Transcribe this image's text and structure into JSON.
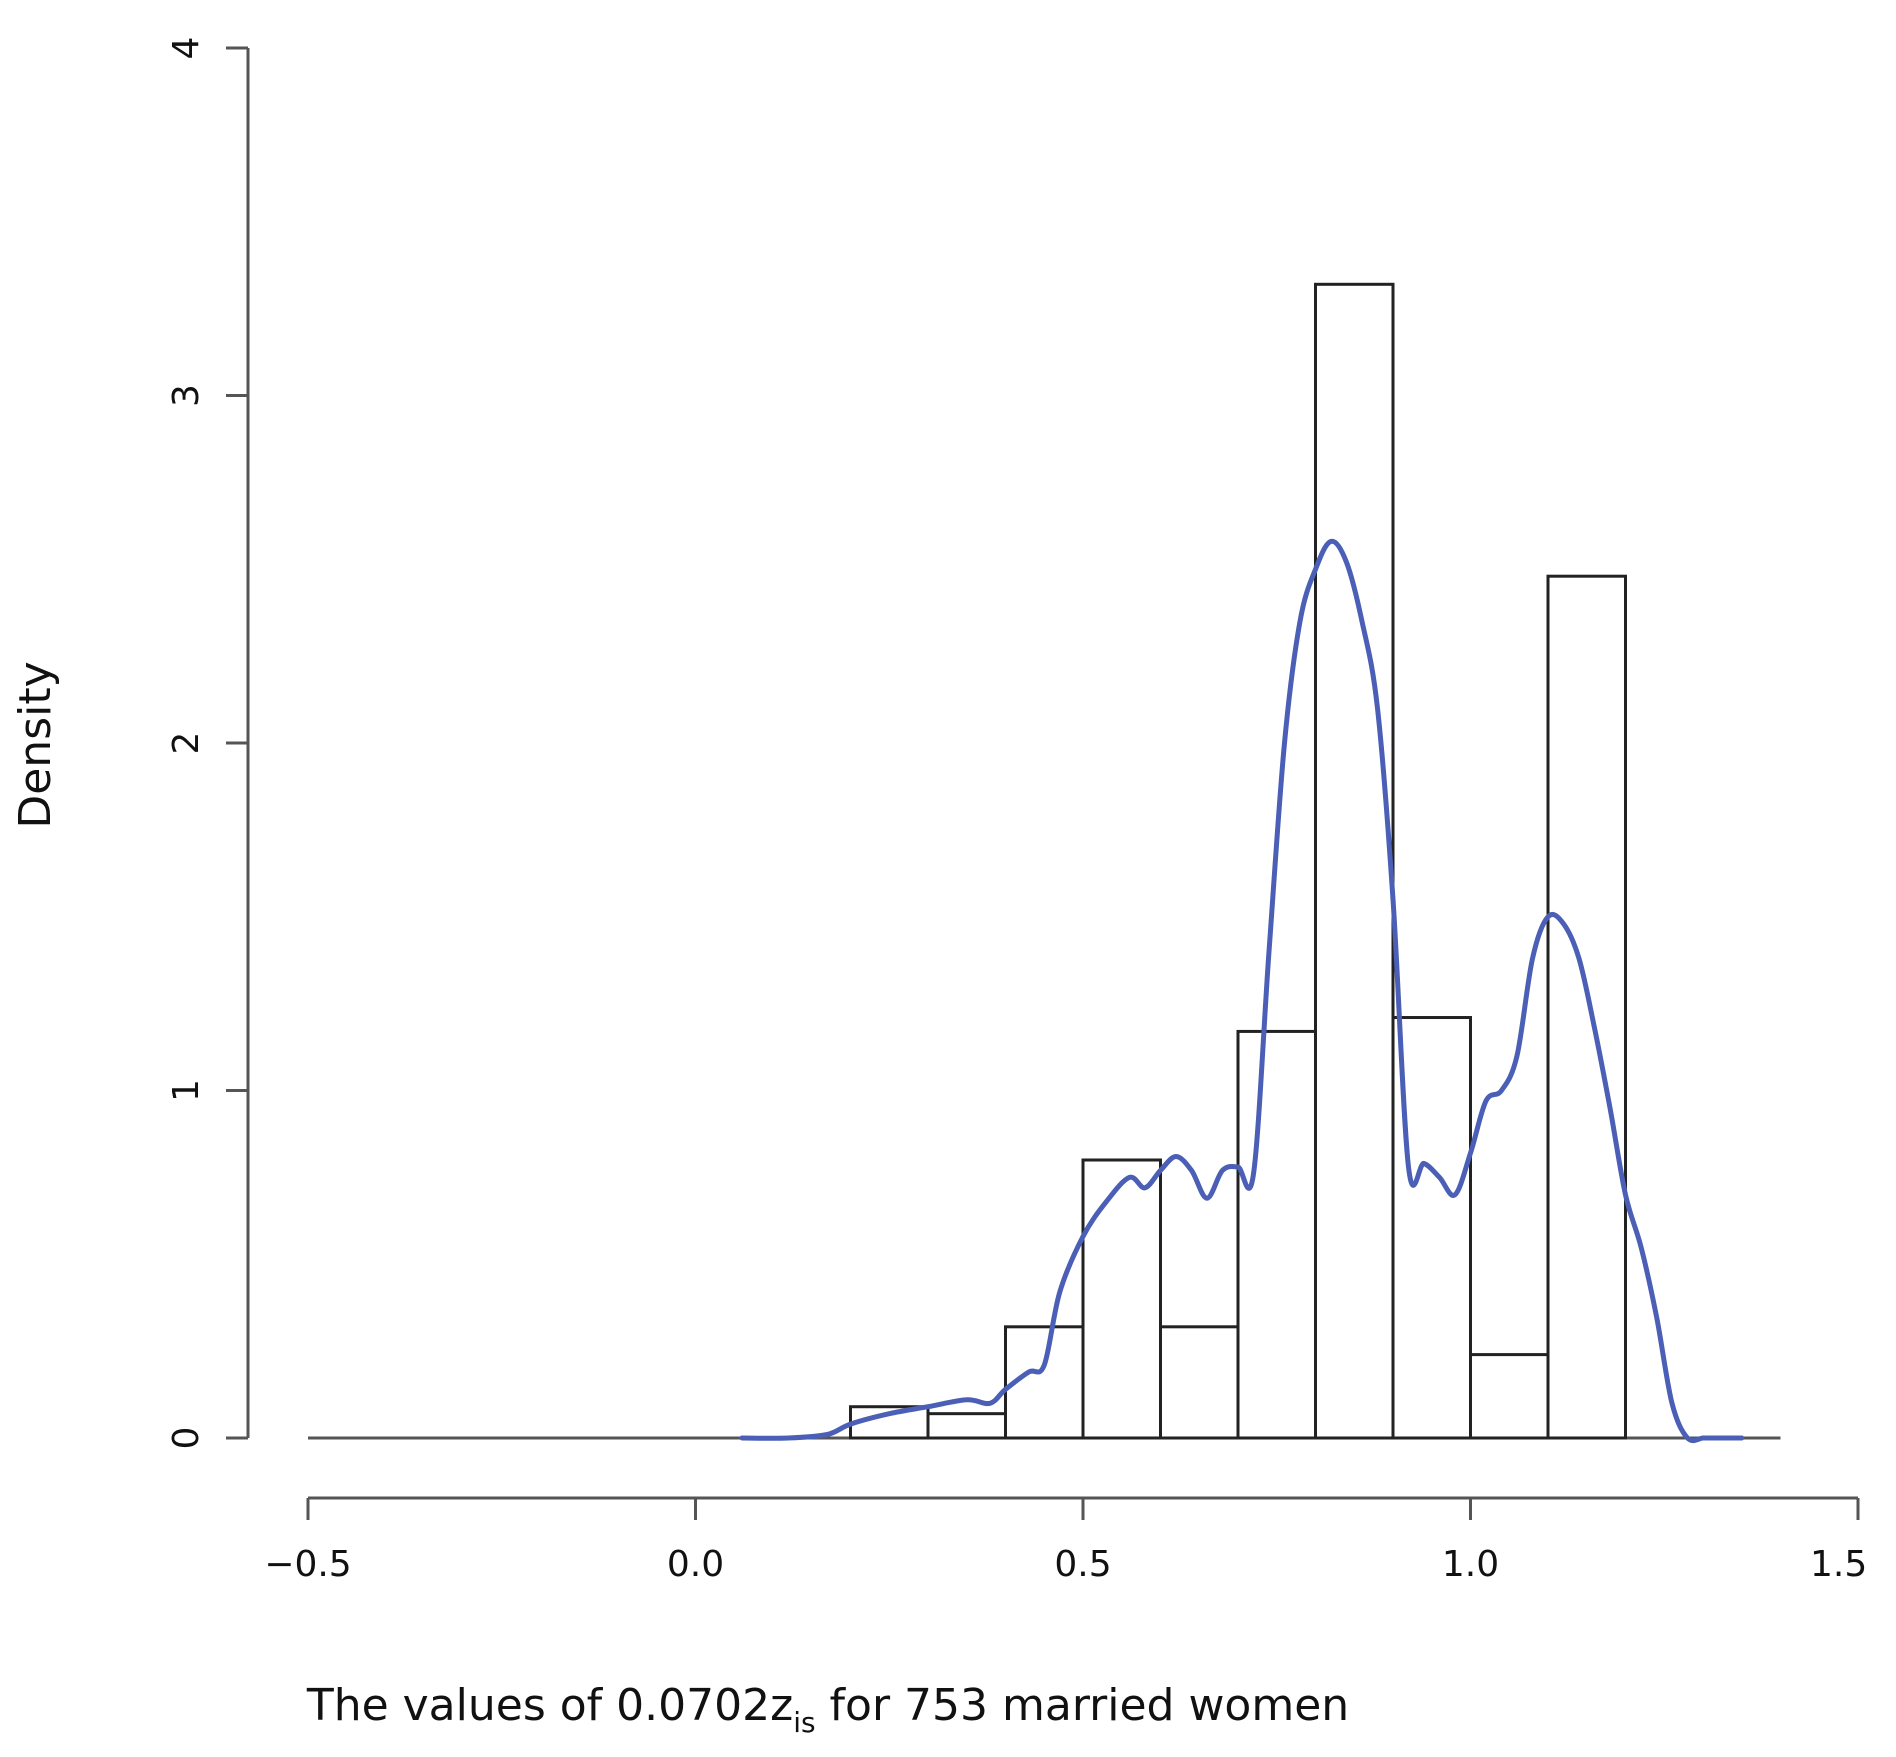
{
  "chart_data": {
    "type": "bar",
    "subtype": "histogram-with-density",
    "title": "",
    "xlabel": {
      "prefix": "The values of 0.0702z",
      "subscript": "is",
      "suffix": " for 753 married women"
    },
    "ylabel": "Density",
    "xlim": [
      -0.5,
      1.5
    ],
    "ylim": [
      0,
      4
    ],
    "x_ticks": [
      -0.5,
      0.0,
      0.5,
      1.0,
      1.5
    ],
    "x_tick_labels": [
      "−0.5",
      "0.0",
      "0.5",
      "1.0",
      "1.5"
    ],
    "y_ticks": [
      0,
      1,
      2,
      3,
      4
    ],
    "y_tick_labels": [
      "0",
      "1",
      "2",
      "3",
      "4"
    ],
    "bins": [
      {
        "x0": 0.2,
        "x1": 0.3,
        "density": 0.09
      },
      {
        "x0": 0.3,
        "x1": 0.4,
        "density": 0.07
      },
      {
        "x0": 0.4,
        "x1": 0.5,
        "density": 0.32
      },
      {
        "x0": 0.5,
        "x1": 0.6,
        "density": 0.8
      },
      {
        "x0": 0.6,
        "x1": 0.7,
        "density": 0.32
      },
      {
        "x0": 0.7,
        "x1": 0.8,
        "density": 1.17
      },
      {
        "x0": 0.8,
        "x1": 0.9,
        "density": 3.32
      },
      {
        "x0": 0.9,
        "x1": 1.0,
        "density": 1.21
      },
      {
        "x0": 1.0,
        "x1": 1.1,
        "density": 0.24
      },
      {
        "x0": 1.1,
        "x1": 1.2,
        "density": 2.48
      }
    ],
    "density_curve": {
      "color": "#4a5fb5",
      "x": [
        0.06,
        0.12,
        0.17,
        0.2,
        0.25,
        0.3,
        0.35,
        0.38,
        0.4,
        0.43,
        0.45,
        0.47,
        0.5,
        0.53,
        0.56,
        0.58,
        0.6,
        0.62,
        0.64,
        0.66,
        0.68,
        0.7,
        0.72,
        0.74,
        0.76,
        0.78,
        0.8,
        0.82,
        0.84,
        0.86,
        0.88,
        0.9,
        0.92,
        0.94,
        0.96,
        0.98,
        1.0,
        1.02,
        1.04,
        1.06,
        1.08,
        1.1,
        1.12,
        1.14,
        1.16,
        1.18,
        1.2,
        1.22,
        1.24,
        1.26,
        1.28,
        1.3,
        1.31,
        1.35
      ],
      "y": [
        0.0,
        0.0,
        0.01,
        0.04,
        0.07,
        0.09,
        0.11,
        0.1,
        0.14,
        0.19,
        0.21,
        0.42,
        0.58,
        0.68,
        0.75,
        0.72,
        0.77,
        0.81,
        0.77,
        0.69,
        0.77,
        0.78,
        0.76,
        1.4,
        2.0,
        2.35,
        2.5,
        2.58,
        2.52,
        2.35,
        2.1,
        1.55,
        0.78,
        0.79,
        0.75,
        0.7,
        0.82,
        0.97,
        1.0,
        1.1,
        1.38,
        1.5,
        1.48,
        1.38,
        1.18,
        0.95,
        0.7,
        0.55,
        0.35,
        0.1,
        0.0,
        0.0,
        0.0,
        0.0
      ]
    },
    "grid": false,
    "legend": "none"
  }
}
